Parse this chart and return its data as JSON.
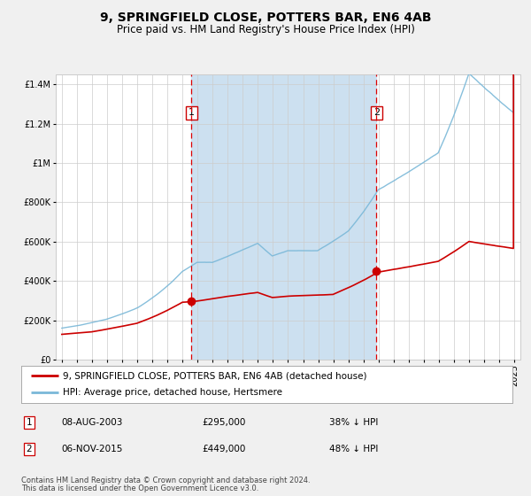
{
  "title": "9, SPRINGFIELD CLOSE, POTTERS BAR, EN6 4AB",
  "subtitle": "Price paid vs. HM Land Registry's House Price Index (HPI)",
  "ylim": [
    0,
    1450000
  ],
  "yticks": [
    0,
    200000,
    400000,
    600000,
    800000,
    1000000,
    1200000,
    1400000
  ],
  "ytick_labels": [
    "£0",
    "£200K",
    "£400K",
    "£600K",
    "£800K",
    "£1M",
    "£1.2M",
    "£1.4M"
  ],
  "xlim_start": 1994.6,
  "xlim_end": 2025.4,
  "xticks": [
    1995,
    1996,
    1997,
    1998,
    1999,
    2000,
    2001,
    2002,
    2003,
    2004,
    2005,
    2006,
    2007,
    2008,
    2009,
    2010,
    2011,
    2012,
    2013,
    2014,
    2015,
    2016,
    2017,
    2018,
    2019,
    2020,
    2021,
    2022,
    2023,
    2024,
    2025
  ],
  "sale1_x": 2003.6,
  "sale1_y": 295000,
  "sale2_x": 2015.85,
  "sale2_y": 449000,
  "vline1_x": 2003.6,
  "vline2_x": 2015.85,
  "shade_color": "#cce0f0",
  "red_line_color": "#cc0000",
  "blue_line_color": "#7ab8d8",
  "grid_color": "#cccccc",
  "background_color": "#f0f0f0",
  "plot_bg_color": "#ffffff",
  "legend_label_red": "9, SPRINGFIELD CLOSE, POTTERS BAR, EN6 4AB (detached house)",
  "legend_label_blue": "HPI: Average price, detached house, Hertsmere",
  "table_row1": [
    "1",
    "08-AUG-2003",
    "£295,000",
    "38% ↓ HPI"
  ],
  "table_row2": [
    "2",
    "06-NOV-2015",
    "£449,000",
    "48% ↓ HPI"
  ],
  "footnote1": "Contains HM Land Registry data © Crown copyright and database right 2024.",
  "footnote2": "This data is licensed under the Open Government Licence v3.0.",
  "title_fontsize": 10,
  "subtitle_fontsize": 8.5,
  "tick_fontsize": 7,
  "legend_fontsize": 7.5,
  "table_fontsize": 7.5,
  "footnote_fontsize": 6
}
